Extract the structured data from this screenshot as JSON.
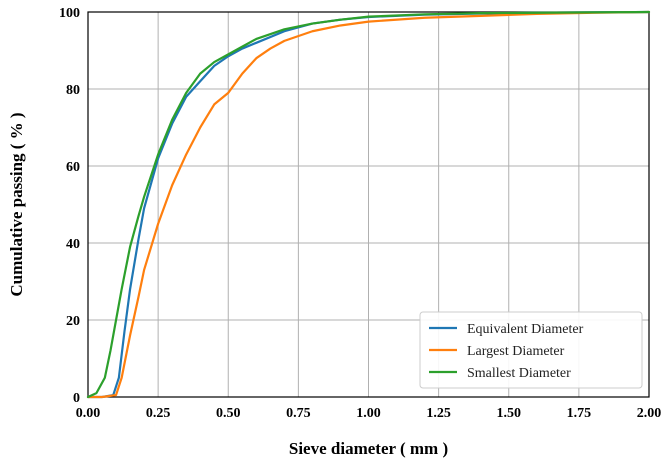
{
  "chart_data": {
    "type": "line",
    "xlabel": "Sieve diameter ( mm )",
    "ylabel": "Cumulative passing ( % )",
    "xlim": [
      0,
      2.0
    ],
    "ylim": [
      0,
      100
    ],
    "x_ticks": [
      "0.00",
      "0.25",
      "0.50",
      "0.75",
      "1.00",
      "1.25",
      "1.50",
      "1.75",
      "2.00"
    ],
    "y_ticks": [
      "0",
      "20",
      "40",
      "60",
      "80",
      "100"
    ],
    "grid": true,
    "legend_position": "bottom-right",
    "series": [
      {
        "name": "Equivalent Diameter",
        "color": "#1f77b4",
        "x": [
          0.0,
          0.05,
          0.09,
          0.11,
          0.13,
          0.15,
          0.18,
          0.2,
          0.25,
          0.3,
          0.35,
          0.4,
          0.45,
          0.5,
          0.55,
          0.6,
          0.7,
          0.8,
          0.9,
          1.0,
          1.2,
          1.4,
          1.6,
          1.8,
          2.0
        ],
        "y": [
          0,
          0,
          0.5,
          5,
          17,
          28,
          41,
          49,
          62,
          71,
          78,
          82,
          86,
          88.5,
          90.5,
          92,
          95,
          97,
          98,
          98.7,
          99.3,
          99.6,
          99.8,
          99.9,
          100
        ]
      },
      {
        "name": "Largest Diameter",
        "color": "#ff7f0e",
        "x": [
          0.0,
          0.05,
          0.1,
          0.12,
          0.15,
          0.18,
          0.2,
          0.25,
          0.3,
          0.35,
          0.4,
          0.45,
          0.5,
          0.55,
          0.6,
          0.65,
          0.7,
          0.8,
          0.9,
          1.0,
          1.2,
          1.4,
          1.6,
          1.8,
          2.0
        ],
        "y": [
          0,
          0,
          0.5,
          5,
          16,
          26,
          33,
          45,
          55,
          63,
          70,
          76,
          79,
          84,
          88,
          90.5,
          92.5,
          95,
          96.5,
          97.5,
          98.5,
          99,
          99.5,
          99.8,
          100
        ]
      },
      {
        "name": "Smallest Diameter",
        "color": "#2ca02c",
        "x": [
          0.0,
          0.03,
          0.06,
          0.08,
          0.1,
          0.12,
          0.15,
          0.18,
          0.2,
          0.25,
          0.3,
          0.35,
          0.4,
          0.45,
          0.5,
          0.55,
          0.6,
          0.7,
          0.8,
          0.9,
          1.0,
          1.2,
          1.4,
          1.6,
          1.8,
          2.0
        ],
        "y": [
          0,
          1,
          5,
          12,
          20,
          28,
          39,
          47,
          52,
          63,
          72,
          79,
          84,
          87,
          89,
          91,
          93,
          95.5,
          97,
          98,
          98.8,
          99.4,
          99.7,
          99.8,
          99.9,
          100
        ]
      }
    ]
  }
}
